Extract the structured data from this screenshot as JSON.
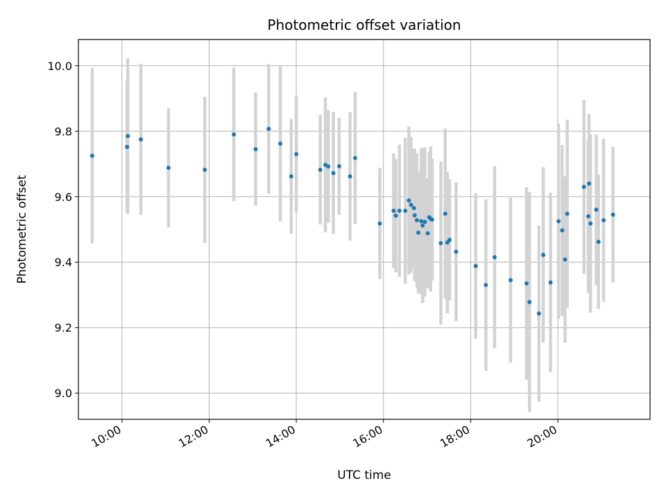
{
  "chart_data": {
    "type": "scatter",
    "title": "Photometric offset variation",
    "xlabel": "UTC time",
    "ylabel": "Photometric offset",
    "x_unit": "hours UTC",
    "xlim": [
      "09:00",
      "22:07"
    ],
    "ylim": [
      8.92,
      10.08
    ],
    "x_ticks": [
      "10:00",
      "12:00",
      "14:00",
      "16:00",
      "18:00",
      "20:00"
    ],
    "y_ticks": [
      9.0,
      9.2,
      9.4,
      9.6,
      9.8,
      10.0
    ],
    "y_tick_labels": [
      "9.0",
      "9.2",
      "9.4",
      "9.6",
      "9.8",
      "10.0"
    ],
    "grid": true,
    "colors": {
      "marker": "#1f77b4",
      "errorbar": "#d3d3d3",
      "grid": "#b0b0b0"
    },
    "series": [
      {
        "x": [
          "09:19",
          "10:07",
          "10:08",
          "10:26",
          "11:04",
          "11:54",
          "12:34",
          "13:04",
          "13:22",
          "13:38",
          "13:53",
          "14:00",
          "14:33",
          "14:40",
          "14:44",
          "14:51",
          "14:59",
          "15:14",
          "15:21",
          "15:55",
          "16:14",
          "16:17",
          "16:22",
          "16:30",
          "16:35",
          "16:38",
          "16:42",
          "16:43",
          "16:46",
          "16:48",
          "16:52",
          "16:54",
          "16:57",
          "17:01",
          "17:03",
          "17:05",
          "17:07",
          "17:19",
          "17:25",
          "17:28",
          "17:31",
          "17:40",
          "18:07",
          "18:21",
          "18:33",
          "18:55",
          "19:17",
          "19:21",
          "19:34",
          "19:40",
          "19:50",
          "20:01",
          "20:06",
          "20:10",
          "20:13",
          "20:36",
          "20:42",
          "20:43",
          "20:45",
          "20:53",
          "20:56",
          "21:03",
          "21:16"
        ],
        "y": [
          9.725,
          9.752,
          9.785,
          9.775,
          9.688,
          9.682,
          9.79,
          9.745,
          9.807,
          9.762,
          9.662,
          9.73,
          9.682,
          9.697,
          9.692,
          9.672,
          9.693,
          9.662,
          9.718,
          9.518,
          9.557,
          9.542,
          9.557,
          9.557,
          9.588,
          9.575,
          9.565,
          9.543,
          9.528,
          9.49,
          9.525,
          9.512,
          9.523,
          9.488,
          9.537,
          9.532,
          9.53,
          9.458,
          9.548,
          9.46,
          9.468,
          9.432,
          9.388,
          9.33,
          9.415,
          9.345,
          9.335,
          9.278,
          9.243,
          9.422,
          9.338,
          9.525,
          9.497,
          9.408,
          9.548,
          9.63,
          9.54,
          9.64,
          9.518,
          9.56,
          9.462,
          9.528,
          9.545
        ],
        "err": [
          0.268,
          0.202,
          0.238,
          0.231,
          0.182,
          0.223,
          0.204,
          0.173,
          0.198,
          0.238,
          0.175,
          0.178,
          0.167,
          0.206,
          0.172,
          0.186,
          0.148,
          0.196,
          0.201,
          0.17,
          0.175,
          0.173,
          0.202,
          0.223,
          0.226,
          0.207,
          0.182,
          0.201,
          0.205,
          0.186,
          0.223,
          0.237,
          0.228,
          0.168,
          0.198,
          0.222,
          0.186,
          0.249,
          0.26,
          0.216,
          0.185,
          0.212,
          0.222,
          0.262,
          0.278,
          0.252,
          0.294,
          0.336,
          0.269,
          0.268,
          0.274,
          0.298,
          0.261,
          0.254,
          0.287,
          0.266,
          0.234,
          0.213,
          0.272,
          0.23,
          0.205,
          0.249,
          0.207
        ]
      }
    ]
  }
}
